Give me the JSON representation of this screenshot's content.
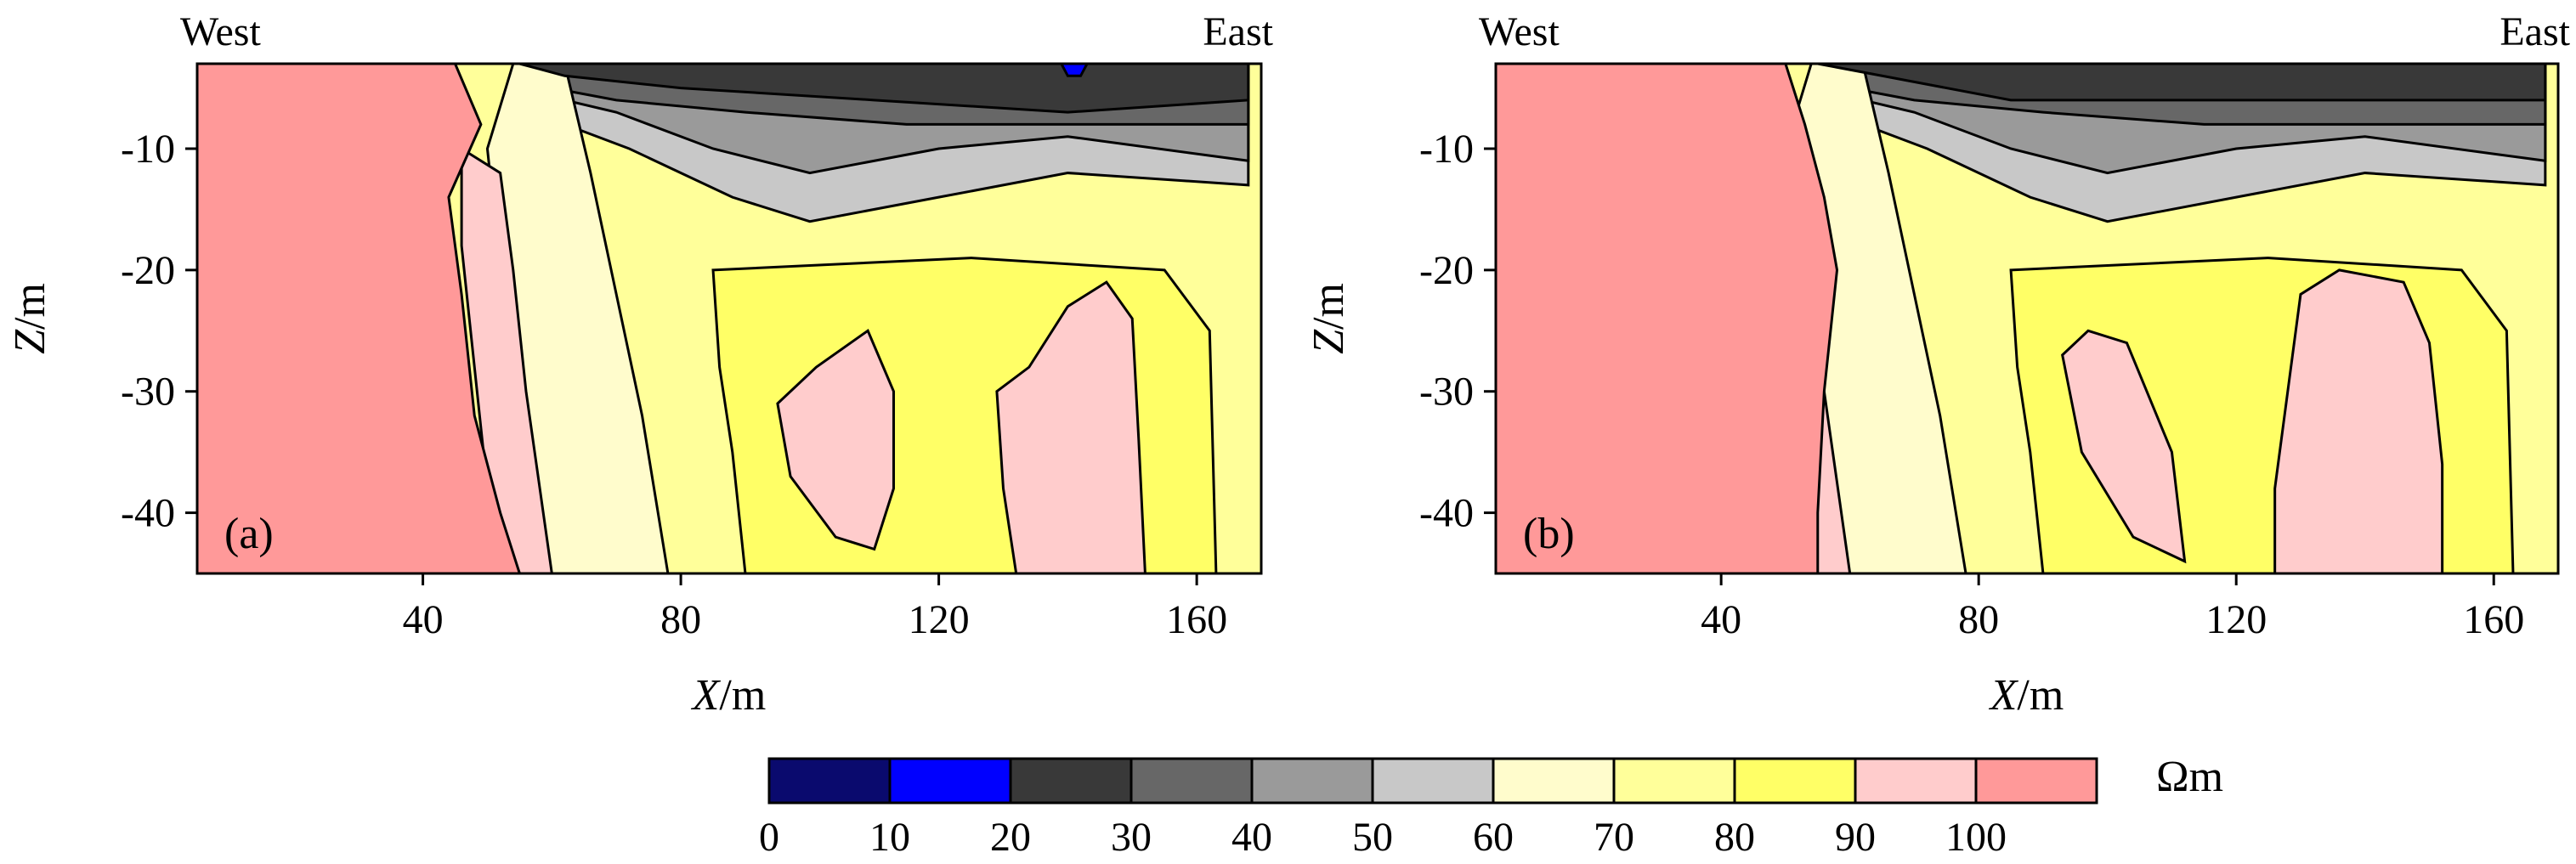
{
  "chart_data": [
    {
      "type": "heatmap",
      "panel_label": "(a)",
      "direction_left": "West",
      "direction_right": "East",
      "xlabel_var": "X",
      "xlabel_unit": "/m",
      "ylabel_var": "Z",
      "ylabel_unit": "/m",
      "xlim": [
        5,
        170
      ],
      "ylim": [
        -45,
        -3
      ],
      "xticks": [
        {
          "v": 40,
          "t": "40"
        },
        {
          "v": 80,
          "t": "80"
        },
        {
          "v": 120,
          "t": "120"
        },
        {
          "v": 160,
          "t": "160"
        }
      ],
      "yticks": [
        {
          "v": -10,
          "t": "-10"
        },
        {
          "v": -20,
          "t": "-20"
        },
        {
          "v": -30,
          "t": "-30"
        },
        {
          "v": -40,
          "t": "-40"
        }
      ],
      "regions": [
        {
          "name": "dark-near-surface",
          "value_range": [
            20,
            30
          ],
          "points": [
            [
              55,
              -3
            ],
            [
              150,
              -3
            ],
            [
              168,
              -3
            ],
            [
              168,
              -6
            ],
            [
              140,
              -7
            ],
            [
              110,
              -6
            ],
            [
              80,
              -5
            ],
            [
              62,
              -4
            ]
          ]
        },
        {
          "name": "high-resistivity-west-body",
          "value_range": [
            100,
            110
          ],
          "points": [
            [
              5,
              -3
            ],
            [
              45,
              -3
            ],
            [
              49,
              -8
            ],
            [
              44,
              -14
            ],
            [
              46,
              -22
            ],
            [
              48,
              -32
            ],
            [
              52,
              -40
            ],
            [
              55,
              -45
            ],
            [
              5,
              -45
            ]
          ]
        },
        {
          "name": "pink-east-anomaly",
          "value_range": [
            90,
            100
          ],
          "points": [
            [
              129,
              -30
            ],
            [
              134,
              -28
            ],
            [
              140,
              -23
            ],
            [
              146,
              -21
            ],
            [
              150,
              -24
            ],
            [
              151,
              -34
            ],
            [
              152,
              -45
            ],
            [
              132,
              -45
            ],
            [
              130,
              -38
            ]
          ]
        },
        {
          "name": "pink-central-anomaly",
          "value_range": [
            90,
            100
          ],
          "points": [
            [
              95,
              -31
            ],
            [
              101,
              -28
            ],
            [
              109,
              -25
            ],
            [
              113,
              -30
            ],
            [
              113,
              -38
            ],
            [
              110,
              -43
            ],
            [
              104,
              -42
            ],
            [
              97,
              -37
            ]
          ]
        },
        {
          "name": "blue-surface-spot",
          "value_range": [
            10,
            20
          ],
          "points": [
            [
              139,
              -3
            ],
            [
              143,
              -3
            ],
            [
              142,
              -4
            ],
            [
              140,
              -4
            ]
          ]
        }
      ]
    },
    {
      "type": "heatmap",
      "panel_label": "(b)",
      "direction_left": "West",
      "direction_right": "East",
      "xlabel_var": "X",
      "xlabel_unit": "/m",
      "ylabel_var": "Z",
      "ylabel_unit": "/m",
      "xlim": [
        5,
        170
      ],
      "ylim": [
        -45,
        -3
      ],
      "xticks": [
        {
          "v": 40,
          "t": "40"
        },
        {
          "v": 80,
          "t": "80"
        },
        {
          "v": 120,
          "t": "120"
        },
        {
          "v": 160,
          "t": "160"
        }
      ],
      "yticks": [
        {
          "v": -10,
          "t": "-10"
        },
        {
          "v": -20,
          "t": "-20"
        },
        {
          "v": -30,
          "t": "-30"
        },
        {
          "v": -40,
          "t": "-40"
        }
      ],
      "regions": [
        {
          "name": "dark-near-surface",
          "value_range": [
            20,
            30
          ],
          "points": [
            [
              55,
              -3
            ],
            [
              168,
              -3
            ],
            [
              168,
              -6
            ],
            [
              140,
              -6
            ],
            [
              110,
              -6
            ],
            [
              85,
              -6
            ],
            [
              65,
              -4
            ]
          ]
        },
        {
          "name": "high-resistivity-west-body",
          "value_range": [
            100,
            110
          ],
          "points": [
            [
              5,
              -3
            ],
            [
              50,
              -3
            ],
            [
              53,
              -8
            ],
            [
              56,
              -14
            ],
            [
              58,
              -20
            ],
            [
              56,
              -30
            ],
            [
              55,
              -40
            ],
            [
              55,
              -45
            ],
            [
              5,
              -45
            ]
          ]
        },
        {
          "name": "pink-east-anomaly",
          "value_range": [
            90,
            100
          ],
          "points": [
            [
              130,
              -22
            ],
            [
              136,
              -20
            ],
            [
              146,
              -21
            ],
            [
              150,
              -26
            ],
            [
              152,
              -36
            ],
            [
              152,
              -45
            ],
            [
              126,
              -45
            ],
            [
              126,
              -38
            ],
            [
              128,
              -30
            ]
          ]
        },
        {
          "name": "pink-central-anomaly",
          "value_range": [
            90,
            100
          ],
          "points": [
            [
              93,
              -27
            ],
            [
              97,
              -25
            ],
            [
              103,
              -26
            ],
            [
              110,
              -35
            ],
            [
              112,
              -44
            ],
            [
              104,
              -42
            ],
            [
              96,
              -35
            ]
          ]
        }
      ]
    }
  ],
  "colorbar": {
    "unit": "Ωm",
    "ticks": [
      "0",
      "10",
      "20",
      "30",
      "40",
      "50",
      "60",
      "70",
      "80",
      "90",
      "100"
    ],
    "colors": [
      "#0a0a6e",
      "#0000ff",
      "#393939",
      "#676767",
      "#9a9a9a",
      "#c8c8c8",
      "#fffccc",
      "#ffff9a",
      "#ffff66",
      "#ffcccc",
      "#ff9999"
    ]
  }
}
